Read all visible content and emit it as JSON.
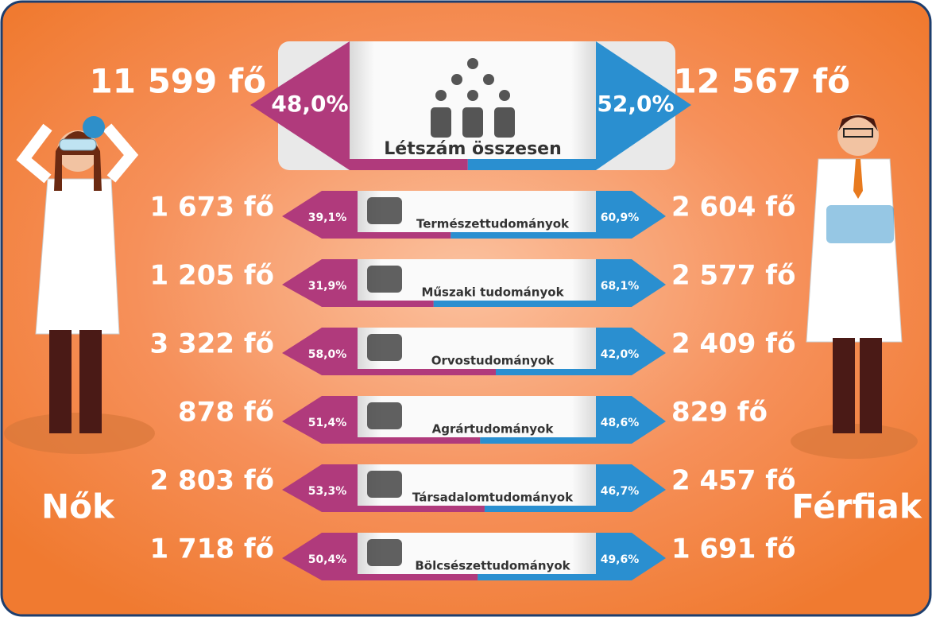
{
  "total": {
    "women_count": "11 599 fő",
    "women_pct": "48,0%",
    "men_count": "12 567 fő",
    "men_pct": "52,0%",
    "label": "Létszám összesen"
  },
  "rows": [
    {
      "label": "Természettudományok",
      "women_count": "1 673 fő",
      "women_pct": "39,1%",
      "men_count": "2 604 fő",
      "men_pct": "60,9%"
    },
    {
      "label": "Műszaki tudományok",
      "women_count": "1 205 fő",
      "women_pct": "31,9%",
      "men_count": "2 577 fő",
      "men_pct": "68,1%"
    },
    {
      "label": "Orvostudományok",
      "women_count": "3 322 fő",
      "women_pct": "58,0%",
      "men_count": "2 409 fő",
      "men_pct": "42,0%"
    },
    {
      "label": "Agrártudományok",
      "women_count": "878 fő",
      "women_pct": "51,4%",
      "men_count": "829 fő",
      "men_pct": "48,6%"
    },
    {
      "label": "Társadalomtudományok",
      "women_count": "2 803 fő",
      "women_pct": "53,3%",
      "men_count": "2 457 fő",
      "men_pct": "46,7%"
    },
    {
      "label": "Bölcsészettudományok",
      "women_count": "1 718 fő",
      "women_pct": "50,4%",
      "men_count": "1 691 fő",
      "men_pct": "49,6%"
    }
  ],
  "women_label": "Nők",
  "men_label": "Férfiak"
}
